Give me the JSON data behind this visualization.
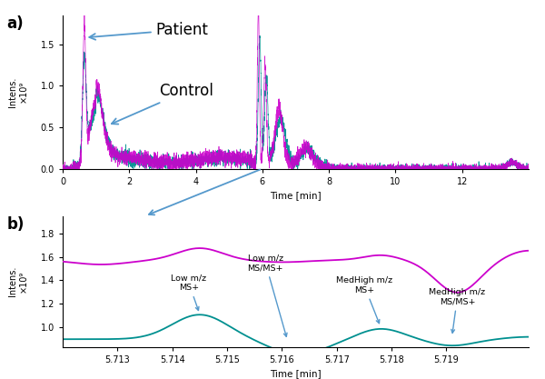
{
  "fig_width": 6.0,
  "fig_height": 4.17,
  "dpi": 100,
  "background_color": "#ffffff",
  "panel_a": {
    "label": "a)",
    "xlabel": "Time [min]",
    "ylabel": "Intens.\n×10⁹",
    "xlim": [
      0,
      14
    ],
    "ylim": [
      0.0,
      1.85
    ],
    "yticks": [
      0.0,
      0.5,
      1.0,
      1.5
    ],
    "yticklabels": [
      "0.0",
      "0.5",
      "1.0",
      "1.5"
    ],
    "xticks": [
      0,
      2,
      4,
      6,
      8,
      10,
      12
    ],
    "patient_color": "#cc00cc",
    "control_color": "#009090",
    "annotation_patient": "Patient",
    "annotation_control": "Control",
    "annotation_color": "#5599cc"
  },
  "panel_b": {
    "label": "b)",
    "xlabel": "Time [min]",
    "ylabel": "Intens.\n×10⁹",
    "xlim": [
      5.712,
      5.7205
    ],
    "ylim": [
      0.83,
      1.95
    ],
    "yticks": [
      1.0,
      1.2,
      1.4,
      1.6,
      1.8
    ],
    "yticklabels": [
      "1.0",
      "1.2",
      "1.4",
      "1.6",
      "1.8"
    ],
    "xticks": [
      5.713,
      5.714,
      5.715,
      5.716,
      5.717,
      5.718,
      5.719
    ],
    "patient_color": "#cc00cc",
    "control_color": "#009090",
    "annotation_color": "#5599cc",
    "labels": [
      "Low m/z\nMS+",
      "Low m/z\nMS/MS+",
      "MedHigh m/z\nMS+",
      "MedHigh m/z\nMS/MS+"
    ]
  }
}
